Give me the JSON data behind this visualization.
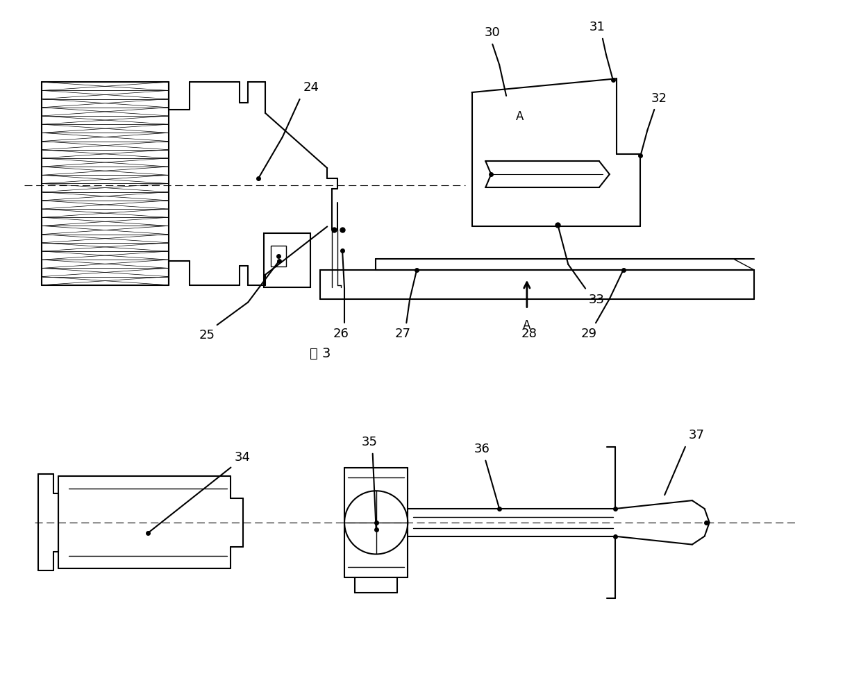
{
  "fig_width": 12.4,
  "fig_height": 10.0,
  "dpi": 100,
  "bg_color": "#ffffff",
  "line_color": "#000000",
  "fig3_label": "图 3",
  "label_fontsize": 13,
  "A_fontsize": 12,
  "caption_fontsize": 14
}
